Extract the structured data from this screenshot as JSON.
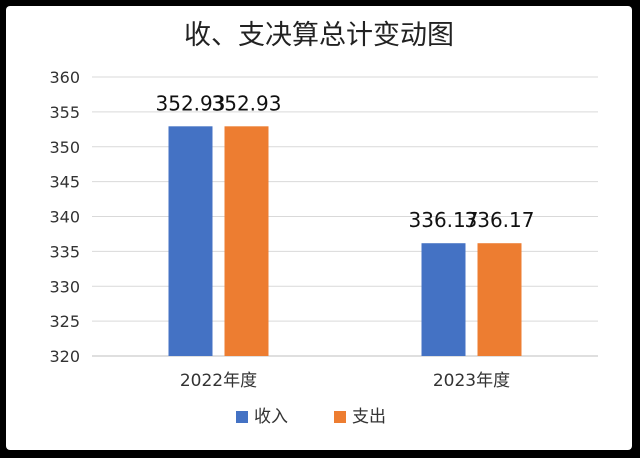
{
  "chart_data": {
    "type": "bar",
    "title": "收、支决算总计变动图",
    "categories": [
      "2022年度",
      "2023年度"
    ],
    "series": [
      {
        "name": "收入",
        "color": "#4472C4",
        "values": [
          352.93,
          336.17
        ]
      },
      {
        "name": "支出",
        "color": "#ED7D31",
        "values": [
          352.93,
          336.17
        ]
      }
    ],
    "data_labels": [
      [
        "352.93",
        "336.17"
      ],
      [
        "352.93",
        "336.17"
      ]
    ],
    "ylim": [
      320,
      360
    ],
    "yticks": [
      "320",
      "325",
      "330",
      "335",
      "340",
      "345",
      "350",
      "355",
      "360"
    ],
    "grid": true,
    "legend_position": "bottom",
    "xlabel": "",
    "ylabel": ""
  }
}
